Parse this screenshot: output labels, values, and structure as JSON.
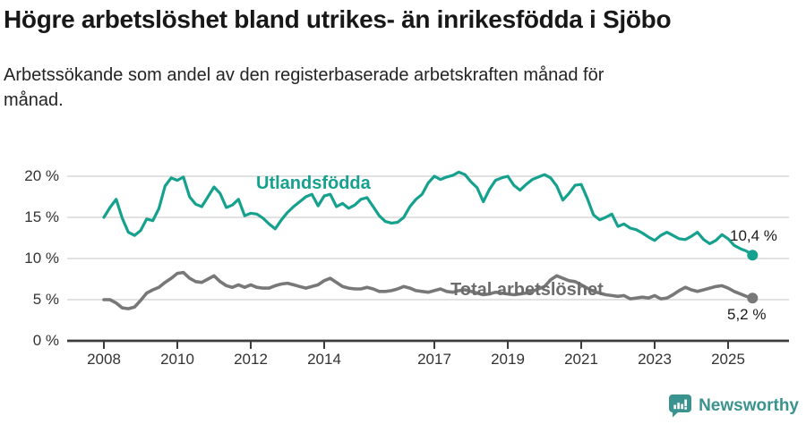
{
  "title": "Högre arbetslöshet bland utrikes- än inrikesfödda i Sjöbo",
  "subtitle": "Arbetssökande som andel av den registerbaserade arbetskraften månad för\nmånad.",
  "footer": {
    "brand": "Newsworthy"
  },
  "chart_data": {
    "type": "line",
    "grid": "horizontal",
    "grid_color": "#d8d8d8",
    "axis_color": "#3c3c3c",
    "ylim": [
      0,
      21
    ],
    "y_tick_labels": [
      "0 %",
      "5 %",
      "10 %",
      "15 %",
      "20 %"
    ],
    "x_tick_labels": [
      "2008",
      "2010",
      "2012",
      "2014",
      "2017",
      "2019",
      "2021",
      "2023",
      "2025"
    ],
    "x_start": 2008,
    "x_step_months": 2,
    "legend_position": "inline-on-chart",
    "series": [
      {
        "name": "Utlandsfödda",
        "color": "#16a18e",
        "end_label": "10,4 %",
        "end_value": 10.4,
        "values": [
          15.0,
          16.2,
          17.2,
          14.9,
          13.2,
          12.8,
          13.4,
          14.8,
          14.6,
          16.1,
          18.8,
          19.8,
          19.5,
          19.9,
          17.5,
          16.6,
          16.3,
          17.5,
          18.7,
          17.9,
          16.2,
          16.5,
          17.2,
          15.2,
          15.5,
          15.4,
          14.9,
          14.2,
          13.6,
          14.7,
          15.6,
          16.3,
          16.9,
          17.5,
          17.8,
          16.4,
          17.6,
          17.8,
          16.3,
          16.7,
          16.1,
          16.5,
          17.2,
          17.4,
          16.3,
          15.2,
          14.5,
          14.3,
          14.4,
          15.0,
          16.3,
          17.2,
          17.8,
          19.2,
          20.0,
          19.6,
          19.9,
          20.1,
          20.5,
          20.2,
          19.3,
          18.6,
          16.9,
          18.4,
          19.5,
          19.8,
          20.0,
          18.9,
          18.3,
          19.0,
          19.6,
          19.9,
          20.2,
          19.8,
          18.8,
          17.1,
          17.9,
          18.9,
          19.0,
          17.3,
          15.3,
          14.7,
          15.0,
          15.4,
          13.9,
          14.2,
          13.7,
          13.5,
          13.1,
          12.6,
          12.2,
          12.8,
          13.2,
          12.8,
          12.4,
          12.3,
          12.7,
          13.2,
          12.3,
          11.8,
          12.2,
          12.9,
          12.4,
          11.6,
          11.2,
          10.9,
          10.4
        ]
      },
      {
        "name": "Total arbetslöshet",
        "color": "#787878",
        "end_label": "5,2 %",
        "end_value": 5.2,
        "values": [
          5.0,
          5.0,
          4.6,
          4.0,
          3.9,
          4.1,
          4.9,
          5.8,
          6.2,
          6.5,
          7.1,
          7.6,
          8.2,
          8.3,
          7.6,
          7.2,
          7.1,
          7.5,
          7.9,
          7.2,
          6.7,
          6.5,
          6.8,
          6.5,
          6.8,
          6.5,
          6.4,
          6.4,
          6.7,
          6.9,
          7.0,
          6.8,
          6.6,
          6.4,
          6.6,
          6.8,
          7.3,
          7.6,
          7.1,
          6.6,
          6.4,
          6.3,
          6.3,
          6.5,
          6.3,
          6.0,
          6.0,
          6.1,
          6.3,
          6.6,
          6.4,
          6.1,
          6.0,
          5.9,
          6.1,
          6.3,
          6.0,
          5.9,
          6.1,
          6.2,
          6.0,
          5.8,
          5.6,
          5.7,
          5.9,
          5.8,
          5.7,
          5.6,
          5.7,
          5.8,
          6.0,
          6.3,
          6.6,
          7.4,
          7.9,
          7.6,
          7.3,
          7.2,
          6.8,
          6.4,
          6.0,
          5.8,
          5.6,
          5.5,
          5.4,
          5.5,
          5.1,
          5.2,
          5.3,
          5.2,
          5.5,
          5.1,
          5.2,
          5.6,
          6.1,
          6.5,
          6.2,
          6.0,
          6.2,
          6.4,
          6.6,
          6.7,
          6.4,
          6.0,
          5.7,
          5.4,
          5.2
        ]
      }
    ]
  }
}
